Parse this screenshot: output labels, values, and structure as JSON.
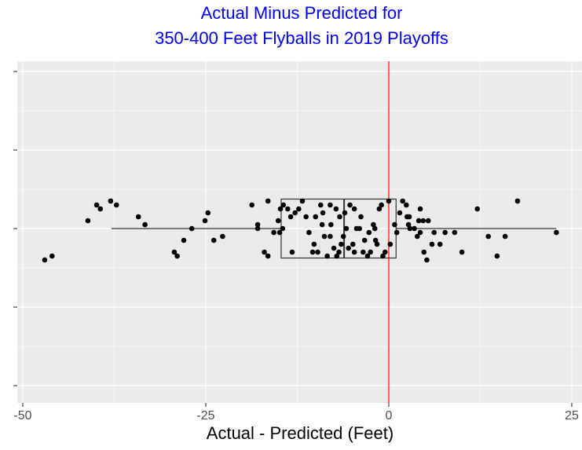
{
  "chart_data": {
    "type": "boxplot",
    "title": [
      "Actual Minus Predicted for",
      "350-400 Feet Flyballs in 2019 Playoffs"
    ],
    "title_color": "#0000ff",
    "x_label": "Actual - Predicted (Feet)",
    "xlim": [
      -50.75,
      26.4
    ],
    "xticks": [
      -50,
      -25,
      0,
      25
    ],
    "x_minor_ticks": [
      -37.5,
      -12.5,
      12.5
    ],
    "ylim": [
      -0.444,
      0.426
    ],
    "yticks": [
      -0.4,
      -0.2,
      0,
      0.2,
      0.4
    ],
    "y_minor_ticks": [
      -0.3,
      -0.1,
      0.1,
      0.3
    ],
    "grid": true,
    "box": {
      "min": -37.9,
      "q1": -14.7,
      "median": -6.1,
      "q3": 1.0,
      "max": 22.9
    },
    "vline": {
      "value": 0,
      "color": "#ff0000"
    },
    "point_color": "#000000",
    "points": {
      "x": [
        -47.0,
        -46.0,
        -41.1,
        -39.9,
        -39.4,
        -38.0,
        -37.2,
        -34.2,
        -33.3,
        -29.3,
        -28.9,
        -28.0,
        -26.9,
        -25.1,
        -24.7,
        -23.9,
        -22.7,
        -18.7,
        -17.9,
        -17.9,
        -16.5,
        -17.0,
        -16.5,
        -15.7,
        -15.1,
        -14.9,
        -14.8,
        -14.5,
        -14.4,
        -13.8,
        -13.4,
        -13.2,
        -12.8,
        -12.3,
        -11.8,
        -11.3,
        -10.9,
        -10.4,
        -10.2,
        -10.0,
        -9.7,
        -9.3,
        -9.1,
        -9.0,
        -8.8,
        -8.4,
        -8.0,
        -8.0,
        -7.9,
        -7.5,
        -7.2,
        -7.1,
        -6.8,
        -6.7,
        -6.5,
        -6.2,
        -6.0,
        -5.8,
        -5.5,
        -5.3,
        -4.9,
        -4.7,
        -4.7,
        -4.4,
        -4.0,
        -3.8,
        -3.5,
        -3.3,
        -2.9,
        -2.7,
        -2.5,
        -2.1,
        -1.9,
        -1.8,
        -1.6,
        -1.3,
        -1.0,
        -0.8,
        -0.5,
        0.0,
        0.2,
        0.8,
        1.1,
        1.5,
        1.9,
        2.4,
        2.5,
        2.7,
        2.8,
        2.9,
        3.5,
        3.9,
        4.1,
        4.3,
        4.3,
        4.7,
        4.8,
        5.2,
        5.4,
        5.9,
        6.2,
        7.0,
        7.7,
        9.0,
        10.0,
        12.1,
        13.6,
        14.8,
        15.9,
        17.6,
        22.9
      ],
      "y": [
        -0.08,
        -0.07,
        0.02,
        0.06,
        0.05,
        0.07,
        0.06,
        0.03,
        0.01,
        -0.06,
        -0.07,
        -0.03,
        0.0,
        0.02,
        0.04,
        -0.03,
        -0.02,
        0.06,
        0.01,
        0.0,
        0.07,
        -0.06,
        -0.07,
        -0.01,
        0.02,
        -0.01,
        0.05,
        0.0,
        0.06,
        0.05,
        0.03,
        -0.06,
        0.04,
        0.05,
        0.07,
        0.03,
        -0.01,
        -0.06,
        -0.04,
        0.03,
        -0.06,
        0.06,
        0.01,
        0.04,
        -0.02,
        -0.07,
        -0.02,
        0.06,
        0.01,
        -0.05,
        0.05,
        -0.07,
        -0.06,
        0.03,
        -0.04,
        -0.02,
        0.04,
        0.0,
        -0.05,
        0.06,
        -0.04,
        0.05,
        -0.06,
        0.0,
        0.0,
        0.03,
        -0.06,
        -0.03,
        -0.07,
        -0.01,
        -0.06,
        0.01,
        0.0,
        -0.03,
        -0.04,
        0.05,
        0.06,
        -0.07,
        -0.06,
        0.07,
        -0.04,
        0.01,
        -0.01,
        0.04,
        0.07,
        0.06,
        0.03,
        0.01,
        0.03,
        0.0,
        0.0,
        -0.02,
        0.02,
        0.05,
        -0.01,
        0.02,
        -0.06,
        -0.08,
        0.02,
        -0.04,
        -0.01,
        -0.04,
        -0.01,
        -0.01,
        -0.06,
        0.05,
        -0.02,
        -0.07,
        -0.02,
        0.07,
        -0.01
      ]
    }
  }
}
